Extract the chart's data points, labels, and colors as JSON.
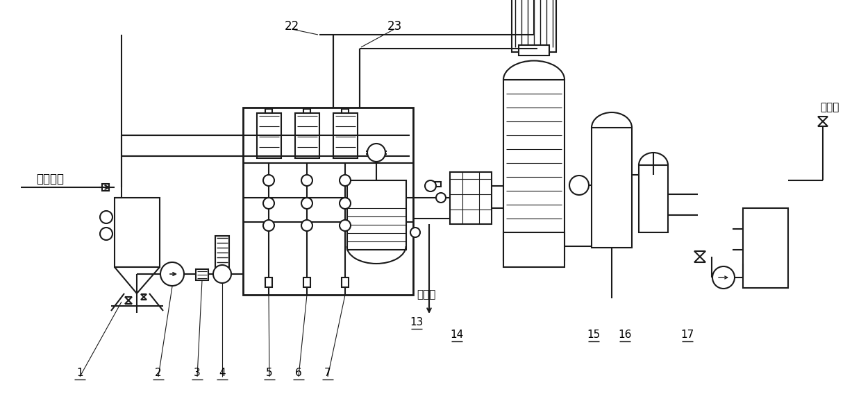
{
  "bg_color": "#ffffff",
  "lc": "#1a1a1a",
  "lw": 1.5,
  "labels": {
    "input": "物料骨汤",
    "water": "自来水",
    "condensate": "蒸馏水",
    "22": "22",
    "23": "23",
    "1": "1",
    "2": "2",
    "3": "3",
    "4": "4",
    "5": "5",
    "6": "6",
    "7": "7",
    "13": "13",
    "14": "14",
    "15": "15",
    "16": "16",
    "17": "17"
  },
  "figsize": [
    12.4,
    5.91
  ],
  "dpi": 100
}
